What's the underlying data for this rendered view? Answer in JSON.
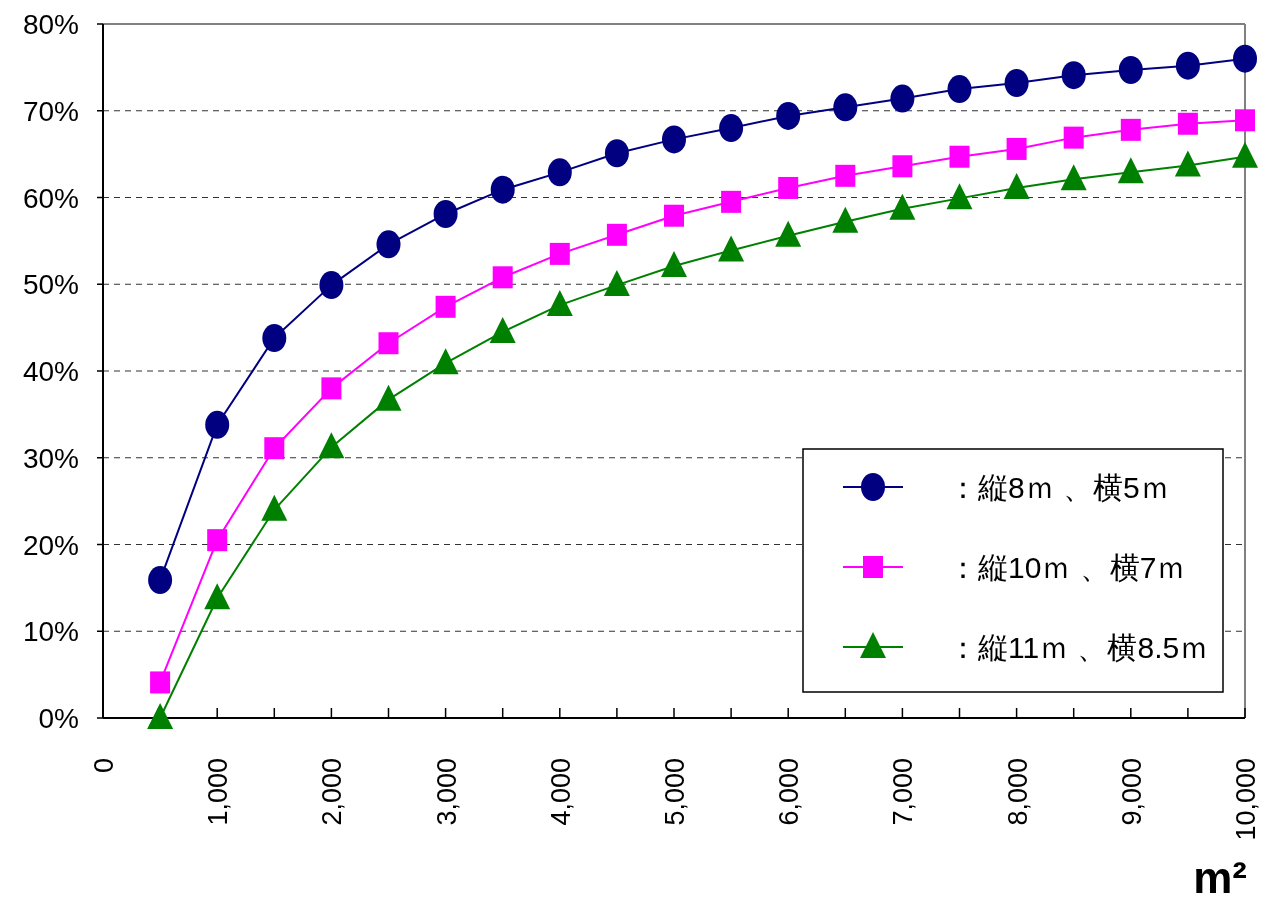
{
  "chart_data": {
    "type": "line",
    "xlabel": "m²",
    "x": [
      500,
      1000,
      1500,
      2000,
      2500,
      3000,
      3500,
      4000,
      4500,
      5000,
      5500,
      6000,
      6500,
      7000,
      7500,
      8000,
      8500,
      9000,
      9500,
      10000
    ],
    "series": [
      {
        "name": "：縦8ｍ 、横5ｍ",
        "color": "#000080",
        "marker": "circle",
        "values": [
          15.9,
          33.8,
          43.8,
          49.9,
          54.6,
          58.1,
          60.9,
          62.9,
          65.1,
          66.7,
          68.0,
          69.4,
          70.4,
          71.4,
          72.5,
          73.2,
          74.1,
          74.7,
          75.2,
          76.0
        ]
      },
      {
        "name": "：縦10ｍ 、横7ｍ",
        "color": "#ff00ff",
        "marker": "square",
        "values": [
          4.1,
          20.5,
          31.1,
          38.0,
          43.2,
          47.4,
          50.8,
          53.5,
          55.7,
          57.9,
          59.5,
          61.1,
          62.5,
          63.6,
          64.7,
          65.6,
          66.9,
          67.8,
          68.5,
          68.9
        ]
      },
      {
        "name": "：縦11ｍ 、横8.5ｍ",
        "color": "#008000",
        "marker": "triangle",
        "values": [
          0.0,
          13.8,
          24.0,
          31.2,
          36.7,
          40.9,
          44.5,
          47.6,
          49.9,
          52.1,
          53.9,
          55.6,
          57.2,
          58.7,
          59.9,
          61.1,
          62.1,
          62.9,
          63.7,
          64.7
        ]
      }
    ],
    "xlim": [
      0,
      10000
    ],
    "xticks": [
      0,
      {
        "value": 500,
        "label": null
      },
      {
        "value": 1000,
        "label": "1,000"
      },
      {
        "value": 1500,
        "label": null
      },
      {
        "value": 2000,
        "label": "2,000"
      },
      {
        "value": 2500,
        "label": null
      },
      {
        "value": 3000,
        "label": "3,000"
      },
      {
        "value": 3500,
        "label": null
      },
      {
        "value": 4000,
        "label": "4,000"
      },
      {
        "value": 4500,
        "label": null
      },
      {
        "value": 5000,
        "label": "5,000"
      },
      {
        "value": 5500,
        "label": null
      },
      {
        "value": 6000,
        "label": "6,000"
      },
      {
        "value": 6500,
        "label": null
      },
      {
        "value": 7000,
        "label": "7,000"
      },
      {
        "value": 7500,
        "label": null
      },
      {
        "value": 8000,
        "label": "8,000"
      },
      {
        "value": 8500,
        "label": null
      },
      {
        "value": 9000,
        "label": "9,000"
      },
      {
        "value": 9500,
        "label": null
      },
      {
        "value": 10000,
        "label": "10,000"
      }
    ],
    "ylim": [
      0,
      80
    ],
    "yticks": [
      {
        "value": 0,
        "label": "0%"
      },
      {
        "value": 10,
        "label": "10%"
      },
      {
        "value": 20,
        "label": "20%"
      },
      {
        "value": 30,
        "label": "30%"
      },
      {
        "value": 40,
        "label": "40%"
      },
      {
        "value": 50,
        "label": "50%"
      },
      {
        "value": 60,
        "label": "60%"
      },
      {
        "value": 70,
        "label": "70%"
      },
      {
        "value": 80,
        "label": "80%"
      }
    ],
    "grid": "y",
    "legend": "bottom right",
    "line_style": "solid"
  }
}
